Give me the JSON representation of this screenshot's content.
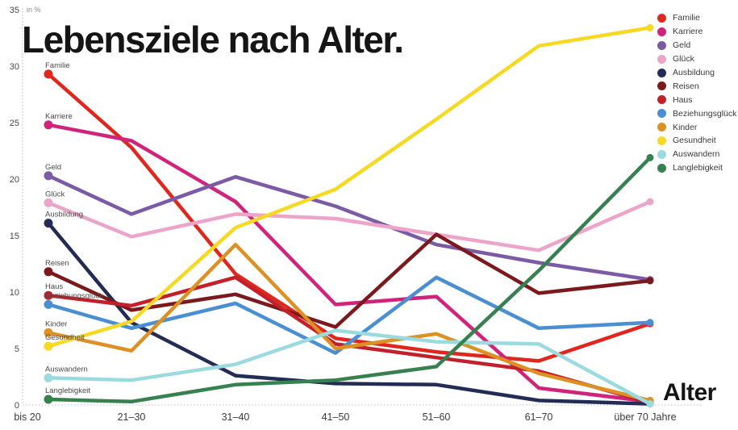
{
  "title": "Lebensziele nach Alter.",
  "unit_label": "in %",
  "x_axis_label": "Alter",
  "chart_data": {
    "type": "line",
    "title": "Lebensziele nach Alter.",
    "xlabel": "Alter",
    "ylabel": "in %",
    "ylim": [
      0,
      35
    ],
    "y_ticks": [
      0,
      5,
      10,
      15,
      20,
      25,
      30,
      35
    ],
    "grid": false,
    "legend_position": "top-right",
    "categories": [
      "bis 20",
      "21–30",
      "31–40",
      "41–50",
      "51–60",
      "61–70",
      "über 70 Jahre"
    ],
    "series": [
      {
        "name": "Familie",
        "color": "#e0271e",
        "values": [
          29.3,
          22.8,
          11.6,
          5.9,
          4.7,
          3.9,
          7.2
        ]
      },
      {
        "name": "Karriere",
        "color": "#d2237c",
        "values": [
          24.8,
          23.4,
          18.0,
          8.9,
          9.6,
          1.5,
          0.3
        ]
      },
      {
        "name": "Geld",
        "color": "#7b5ba5",
        "values": [
          20.3,
          16.9,
          20.2,
          17.6,
          14.2,
          12.6,
          11.1
        ]
      },
      {
        "name": "Glück",
        "color": "#eca5c9",
        "values": [
          17.9,
          14.9,
          16.9,
          16.5,
          15.1,
          13.7,
          18.0
        ]
      },
      {
        "name": "Ausbildung",
        "color": "#232c54",
        "values": [
          16.1,
          7.3,
          2.6,
          1.9,
          1.8,
          0.4,
          0.1
        ]
      },
      {
        "name": "Reisen",
        "color": "#7b191c",
        "values": [
          11.8,
          8.4,
          9.8,
          6.9,
          15.1,
          9.9,
          11.0
        ]
      },
      {
        "name": "Haus",
        "color": "#c2202b",
        "values": [
          9.7,
          8.8,
          11.3,
          5.4,
          4.2,
          3.0,
          0.2
        ]
      },
      {
        "name": "Beziehungsglück",
        "color": "#4b8fd3",
        "values": [
          8.9,
          6.8,
          9.0,
          4.6,
          11.3,
          6.8,
          7.3
        ]
      },
      {
        "name": "Kinder",
        "color": "#dd9023",
        "values": [
          6.4,
          4.8,
          14.2,
          5.0,
          6.3,
          2.8,
          0.4
        ]
      },
      {
        "name": "Gesundheit",
        "color": "#f6d922",
        "values": [
          5.2,
          7.4,
          15.7,
          19.1,
          25.3,
          31.8,
          33.4
        ]
      },
      {
        "name": "Auswandern",
        "color": "#9bdbe0",
        "values": [
          2.4,
          2.2,
          3.6,
          6.6,
          5.6,
          5.4,
          0.1
        ]
      },
      {
        "name": "Langlebigkeit",
        "color": "#37804f",
        "values": [
          0.5,
          0.3,
          1.8,
          2.2,
          3.4,
          11.9,
          21.9
        ]
      }
    ]
  }
}
